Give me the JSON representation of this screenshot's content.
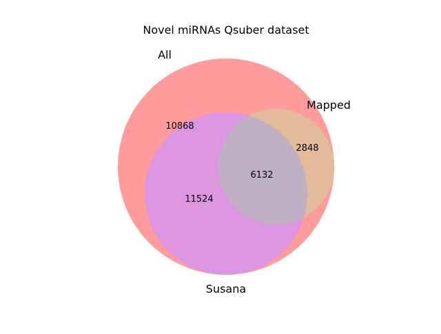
{
  "title": "Novel miRNAs Qsuber dataset",
  "sets": [
    {
      "id": "all",
      "label": "All",
      "color": "#ff9b9b"
    },
    {
      "id": "mapped",
      "label": "Mapped",
      "color": "#e2bb9a"
    },
    {
      "id": "susana",
      "label": "Susana",
      "color": "#dc96e1"
    }
  ],
  "overlap_color": "#c0b0c4",
  "regions": [
    {
      "id": "all-only",
      "sets": [
        "All"
      ],
      "value": "10868"
    },
    {
      "id": "all-mapped",
      "sets": [
        "All",
        "Mapped"
      ],
      "value": "2848"
    },
    {
      "id": "all-susana",
      "sets": [
        "All",
        "Susana"
      ],
      "value": "11524"
    },
    {
      "id": "all-mapped-susana",
      "sets": [
        "All",
        "Mapped",
        "Susana"
      ],
      "value": "6132"
    }
  ]
}
